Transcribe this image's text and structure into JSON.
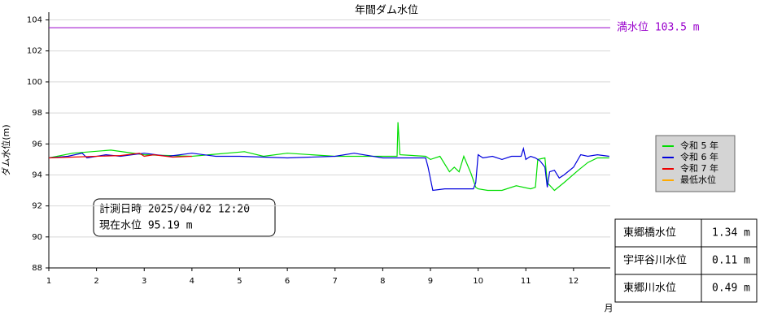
{
  "chart_data": {
    "type": "line",
    "title": "年間ダム水位",
    "y_label": "ダム水位(m)",
    "x_label": "月",
    "xlim": [
      1,
      12.77
    ],
    "xticks": [
      1,
      2,
      3,
      4,
      5,
      6,
      7,
      8,
      9,
      10,
      11,
      12
    ],
    "ylim": [
      88,
      104.5
    ],
    "yticks": [
      88,
      90,
      92,
      94,
      96,
      98,
      100,
      102,
      104
    ],
    "grid": true,
    "full_level": {
      "text": "満水位 103.5 m",
      "value": 103.5,
      "color": "#9900cc"
    },
    "series": [
      {
        "name": "令和 5 年",
        "color": "#00dd00",
        "x": [
          1.0,
          1.5,
          2.3,
          3.0,
          4.0,
          5.1,
          5.5,
          6.0,
          7.0,
          8.0,
          8.3,
          8.32,
          8.36,
          8.9,
          9.0,
          9.2,
          9.4,
          9.5,
          9.6,
          9.7,
          9.85,
          9.95,
          10.0,
          10.2,
          10.5,
          10.8,
          11.1,
          11.2,
          11.25,
          11.4,
          11.45,
          11.6,
          11.8,
          12.1,
          12.3,
          12.5,
          12.75
        ],
        "values": [
          95.1,
          95.4,
          95.6,
          95.3,
          95.2,
          95.5,
          95.2,
          95.4,
          95.2,
          95.2,
          95.2,
          97.4,
          95.3,
          95.2,
          95.0,
          95.2,
          94.2,
          94.5,
          94.2,
          95.2,
          94.1,
          93.2,
          93.1,
          93.0,
          93.0,
          93.3,
          93.1,
          93.2,
          95.0,
          95.1,
          93.5,
          93.0,
          93.5,
          94.3,
          94.8,
          95.1,
          95.1
        ]
      },
      {
        "name": "令和 6 年",
        "color": "#0000dd",
        "x": [
          1.0,
          1.4,
          1.7,
          1.8,
          2.2,
          2.5,
          3.0,
          3.5,
          4.0,
          4.5,
          5.0,
          6.0,
          7.0,
          7.4,
          8.0,
          8.9,
          8.95,
          9.05,
          9.3,
          9.6,
          9.8,
          9.9,
          9.95,
          10.0,
          10.1,
          10.3,
          10.5,
          10.7,
          10.9,
          10.95,
          11.0,
          11.1,
          11.2,
          11.3,
          11.4,
          11.45,
          11.5,
          11.6,
          11.7,
          11.8,
          12.0,
          12.15,
          12.3,
          12.5,
          12.75
        ],
        "values": [
          95.1,
          95.2,
          95.4,
          95.1,
          95.3,
          95.2,
          95.4,
          95.2,
          95.4,
          95.2,
          95.2,
          95.1,
          95.2,
          95.4,
          95.1,
          95.1,
          94.5,
          93.0,
          93.1,
          93.1,
          93.1,
          93.1,
          93.5,
          95.3,
          95.1,
          95.2,
          95.0,
          95.2,
          95.2,
          95.7,
          95.0,
          95.2,
          95.1,
          94.9,
          94.5,
          93.2,
          94.2,
          94.3,
          93.8,
          94.0,
          94.5,
          95.3,
          95.2,
          95.3,
          95.2
        ]
      },
      {
        "name": "令和 7 年",
        "color": "#ee0000",
        "x": [
          1.0,
          1.5,
          2.0,
          2.5,
          2.9,
          3.0,
          3.2,
          3.6,
          4.0
        ],
        "values": [
          95.1,
          95.15,
          95.2,
          95.25,
          95.4,
          95.2,
          95.3,
          95.15,
          95.2
        ]
      },
      {
        "name": "最低水位",
        "color": "#ffaa00",
        "x": [],
        "values": []
      }
    ],
    "info": {
      "time": "計測日時 2025/04/02  12:20",
      "level": "現在水位  95.19 m"
    },
    "table": {
      "rows": [
        [
          "東郷橋水位",
          "1.34 m"
        ],
        [
          "宇坪谷川水位",
          "0.11 m"
        ],
        [
          "東郷川水位",
          "0.49 m"
        ]
      ]
    }
  }
}
